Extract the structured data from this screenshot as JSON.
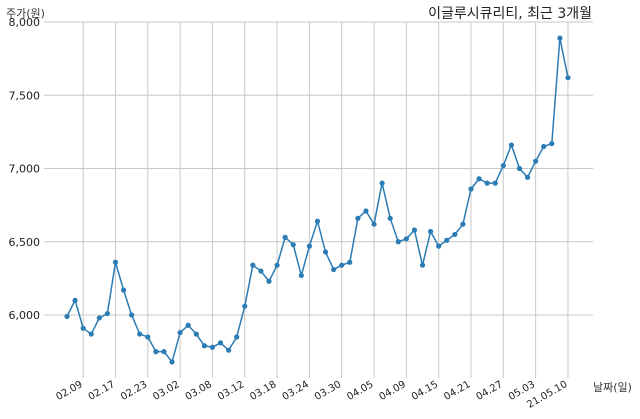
{
  "chart_data": {
    "type": "line",
    "title": "이글루시큐리티, 최근 3개월",
    "ylabel": "주가(원)",
    "xlabel": "날짜(일)",
    "ylim": [
      5570,
      8000
    ],
    "yticks": [
      6000,
      6500,
      7000,
      7500,
      8000
    ],
    "ytick_labels": [
      "6,000",
      "6,500",
      "7,000",
      "7,500",
      "8,000"
    ],
    "xtick_labels": [
      "02.09",
      "02.17",
      "02.23",
      "03.02",
      "03.08",
      "03.12",
      "03.18",
      "03.24",
      "03.30",
      "04.05",
      "04.09",
      "04.15",
      "04.21",
      "04.27",
      "05.03",
      "21.05.10"
    ],
    "xtick_positions": [
      2,
      6,
      10,
      14,
      18,
      22,
      26,
      30,
      34,
      38,
      42,
      46,
      50,
      54,
      58,
      62
    ],
    "grid": true,
    "color": "#2b7bb4",
    "series": [
      {
        "values": [
          5990,
          6100,
          5910,
          5870,
          5980,
          6010,
          6360,
          6170,
          6000,
          5870,
          5850,
          5750,
          5750,
          5680,
          5880,
          5930,
          5870,
          5790,
          5780,
          5810,
          5760,
          5850,
          6060,
          6340,
          6300,
          6230,
          6340,
          6530,
          6480,
          6270,
          6470,
          6640,
          6430,
          6310,
          6340,
          6360,
          6660,
          6710,
          6620,
          6900,
          6660,
          6500,
          6520,
          6580,
          6340,
          6570,
          6470,
          6510,
          6550,
          6620,
          6860,
          6930,
          6900,
          6900,
          7020,
          7160,
          7000,
          6940,
          7050,
          7150,
          7170,
          7890,
          7620
        ]
      }
    ]
  }
}
